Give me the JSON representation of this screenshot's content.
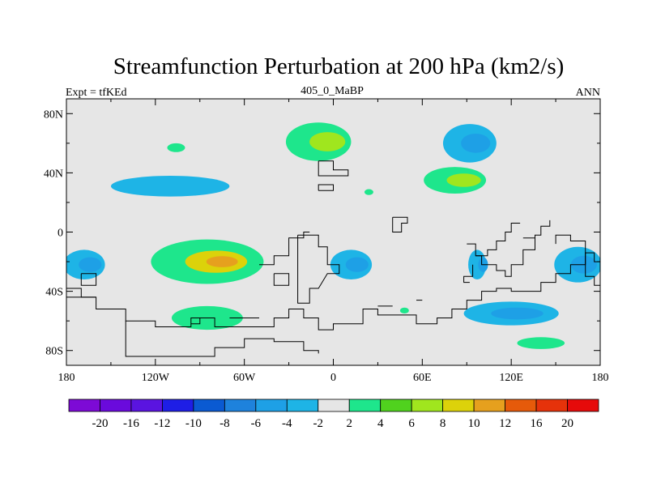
{
  "chart_data": {
    "type": "heatmap",
    "title": "Streamfunction Perturbation at 200 hPa (km2/s)",
    "left_label": "Expt = tfKEd",
    "center_label": "405_0_MaBP",
    "right_label": "ANN",
    "x_ticks": [
      {
        "value": -180,
        "label": "180"
      },
      {
        "value": -120,
        "label": "120W"
      },
      {
        "value": -60,
        "label": "60W"
      },
      {
        "value": 0,
        "label": "0"
      },
      {
        "value": 60,
        "label": "60E"
      },
      {
        "value": 120,
        "label": "120E"
      },
      {
        "value": 180,
        "label": "180"
      }
    ],
    "y_ticks": [
      {
        "value": 80,
        "label": "80N"
      },
      {
        "value": 40,
        "label": "40N"
      },
      {
        "value": 0,
        "label": "0"
      },
      {
        "value": -40,
        "label": "40S"
      },
      {
        "value": -80,
        "label": "80S"
      }
    ],
    "xlim": [
      -180,
      180
    ],
    "ylim": [
      -90,
      90
    ],
    "colorbar_colors": [
      "#7d0ad6",
      "#6a0adc",
      "#5a14e0",
      "#1e1ee6",
      "#0a5ad2",
      "#1e82dc",
      "#1ea0e6",
      "#1eb4e6",
      "#e6e6e6",
      "#1ee68c",
      "#50d21e",
      "#a0e61e",
      "#dcd20a",
      "#e6a01e",
      "#e65a0a",
      "#e6320a",
      "#e60a0a"
    ],
    "colorbar_labels": [
      "-20",
      "-16",
      "-12",
      "-10",
      "-8",
      "-6",
      "-4",
      "-2",
      "2",
      "4",
      "6",
      "8",
      "10",
      "12",
      "16",
      "20"
    ],
    "background_color": "#e6e6e6",
    "features": [
      {
        "name": "ne-pacific-low",
        "sign": "negative",
        "lon": 92,
        "lat": 60,
        "rx": 18,
        "ry": 13,
        "inner": -6
      },
      {
        "name": "north-asia-high",
        "sign": "positive",
        "lon": -10,
        "lat": 61,
        "rx": 22,
        "ry": 13,
        "inner": 6
      },
      {
        "name": "greenland-high-small",
        "sign": "positive",
        "lon": -106,
        "lat": 57,
        "rx": 6,
        "ry": 3,
        "inner": null
      },
      {
        "name": "north-atlantic-low",
        "sign": "negative",
        "lon": -110,
        "lat": 31,
        "rx": 40,
        "ry": 7,
        "inner": null
      },
      {
        "name": "north-pacific-high",
        "sign": "positive",
        "lon": 82,
        "lat": 35,
        "rx": 21,
        "ry": 9,
        "inner": 6
      },
      {
        "name": "south-atlantic-high",
        "sign": "positive",
        "lon": -85,
        "lat": -20,
        "rx": 38,
        "ry": 15,
        "inner": 8
      },
      {
        "name": "africa-low",
        "sign": "negative",
        "lon": 12,
        "lat": -22,
        "rx": 14,
        "ry": 10,
        "inner": -6
      },
      {
        "name": "indian-ocean-low",
        "sign": "negative",
        "lon": 97,
        "lat": -22,
        "rx": 6,
        "ry": 10,
        "inner": -6
      },
      {
        "name": "pacific-low",
        "sign": "negative",
        "lon": 165,
        "lat": -22,
        "rx": 16,
        "ry": 12,
        "inner": -6
      },
      {
        "name": "atlantic-low-west",
        "sign": "negative",
        "lon": -168,
        "lat": -22,
        "rx": 14,
        "ry": 10,
        "inner": -6
      },
      {
        "name": "south-pacific-low",
        "sign": "negative",
        "lon": 120,
        "lat": -55,
        "rx": 32,
        "ry": 8,
        "inner": -6
      },
      {
        "name": "southern-high",
        "sign": "positive",
        "lon": -85,
        "lat": -58,
        "rx": 24,
        "ry": 8,
        "inner": null
      },
      {
        "name": "antarctic-high",
        "sign": "positive",
        "lon": 140,
        "lat": -75,
        "rx": 16,
        "ry": 4,
        "inner": null
      },
      {
        "name": "central-high-small",
        "sign": "positive",
        "lon": 24,
        "lat": 27,
        "rx": 3,
        "ry": 2,
        "inner": null
      },
      {
        "name": "equatorial-high-small",
        "sign": "positive",
        "lon": 48,
        "lat": -53,
        "rx": 3,
        "ry": 2,
        "inner": null
      }
    ],
    "coastlines": [
      [
        [
          -10,
          48
        ],
        [
          0,
          48
        ],
        [
          0,
          42
        ],
        [
          10,
          42
        ],
        [
          10,
          38
        ],
        [
          -10,
          38
        ],
        [
          -10,
          48
        ]
      ],
      [
        [
          -10,
          28
        ],
        [
          0,
          28
        ],
        [
          0,
          32
        ],
        [
          -10,
          32
        ],
        [
          -10,
          28
        ]
      ],
      [
        [
          40,
          10
        ],
        [
          50,
          10
        ],
        [
          50,
          6
        ],
        [
          46,
          6
        ],
        [
          46,
          0
        ],
        [
          40,
          0
        ],
        [
          40,
          10
        ]
      ],
      [
        [
          -24,
          -2
        ],
        [
          -10,
          -2
        ],
        [
          -10,
          -10
        ],
        [
          -4,
          -10
        ],
        [
          -4,
          -22
        ],
        [
          4,
          -22
        ],
        [
          4,
          -28
        ],
        [
          -4,
          -28
        ],
        [
          -10,
          -38
        ],
        [
          -16,
          -38
        ],
        [
          -16,
          -48
        ],
        [
          -24,
          -48
        ],
        [
          -24,
          -2
        ]
      ],
      [
        [
          -40,
          -28
        ],
        [
          -30,
          -28
        ],
        [
          -30,
          -36
        ],
        [
          -40,
          -36
        ],
        [
          -40,
          -28
        ]
      ],
      [
        [
          -170,
          -28
        ],
        [
          -160,
          -28
        ],
        [
          -160,
          -36
        ],
        [
          -170,
          -36
        ],
        [
          -170,
          -28
        ]
      ],
      [
        [
          -180,
          -38
        ],
        [
          -170,
          -38
        ],
        [
          -170,
          -44
        ],
        [
          -160,
          -44
        ],
        [
          -160,
          -52
        ],
        [
          -140,
          -52
        ],
        [
          -140,
          -60
        ],
        [
          -130,
          -60
        ],
        [
          -120,
          -60
        ],
        [
          -120,
          -64
        ],
        [
          -96,
          -64
        ],
        [
          -96,
          -58
        ],
        [
          -80,
          -58
        ],
        [
          -80,
          -64
        ],
        [
          -60,
          -64
        ],
        [
          -40,
          -64
        ],
        [
          -40,
          -58
        ],
        [
          -30,
          -58
        ],
        [
          -30,
          -52
        ],
        [
          -20,
          -52
        ],
        [
          -20,
          -58
        ],
        [
          -10,
          -58
        ],
        [
          -10,
          -66
        ],
        [
          0,
          -66
        ],
        [
          0,
          -62
        ],
        [
          20,
          -62
        ],
        [
          20,
          -52
        ],
        [
          30,
          -52
        ],
        [
          30,
          -56
        ],
        [
          56,
          -56
        ],
        [
          56,
          -62
        ],
        [
          70,
          -62
        ],
        [
          70,
          -58
        ],
        [
          80,
          -58
        ],
        [
          80,
          -52
        ],
        [
          90,
          -52
        ],
        [
          90,
          -46
        ],
        [
          100,
          -46
        ],
        [
          100,
          -40
        ],
        [
          110,
          -40
        ],
        [
          110,
          -38
        ],
        [
          120,
          -38
        ],
        [
          120,
          -40
        ],
        [
          140,
          -40
        ],
        [
          140,
          -34
        ],
        [
          150,
          -34
        ],
        [
          150,
          -28
        ],
        [
          160,
          -28
        ],
        [
          160,
          -22
        ],
        [
          170,
          -22
        ],
        [
          170,
          -14
        ],
        [
          176,
          -14
        ],
        [
          176,
          -20
        ],
        [
          180,
          -20
        ]
      ],
      [
        [
          -180,
          -44
        ],
        [
          -160,
          -44
        ]
      ],
      [
        [
          -140,
          -60
        ],
        [
          -140,
          -84
        ],
        [
          -80,
          -84
        ],
        [
          -80,
          -78
        ],
        [
          -60,
          -78
        ],
        [
          -60,
          -72
        ],
        [
          -40,
          -72
        ],
        [
          -40,
          -74
        ],
        [
          -20,
          -74
        ],
        [
          -20,
          -80
        ],
        [
          -10,
          -80
        ],
        [
          -10,
          -82
        ]
      ],
      [
        [
          -90,
          -58
        ],
        [
          -90,
          -62
        ],
        [
          -96,
          -62
        ]
      ],
      [
        [
          -70,
          -58
        ],
        [
          -50,
          -58
        ]
      ],
      [
        [
          170,
          -22
        ],
        [
          170,
          -30
        ],
        [
          176,
          -30
        ],
        [
          176,
          -36
        ],
        [
          180,
          -36
        ]
      ],
      [
        [
          150,
          -8
        ],
        [
          150,
          -2
        ],
        [
          160,
          -2
        ],
        [
          160,
          -6
        ],
        [
          170,
          -6
        ],
        [
          170,
          -22
        ]
      ],
      [
        [
          90,
          -8
        ],
        [
          96,
          -8
        ],
        [
          96,
          -16
        ],
        [
          100,
          -16
        ],
        [
          100,
          -22
        ],
        [
          110,
          -22
        ],
        [
          110,
          -26
        ],
        [
          116,
          -26
        ],
        [
          116,
          -30
        ],
        [
          120,
          -30
        ],
        [
          120,
          -22
        ],
        [
          128,
          -22
        ],
        [
          128,
          -12
        ],
        [
          136,
          -12
        ],
        [
          136,
          -2
        ],
        [
          140,
          -2
        ],
        [
          140,
          4
        ],
        [
          146,
          4
        ],
        [
          146,
          8
        ]
      ],
      [
        [
          126,
          6
        ],
        [
          120,
          6
        ],
        [
          120,
          0
        ],
        [
          116,
          0
        ],
        [
          116,
          -6
        ],
        [
          110,
          -6
        ],
        [
          110,
          -12
        ],
        [
          104,
          -12
        ],
        [
          104,
          -16
        ],
        [
          96,
          -16
        ]
      ],
      [
        [
          94,
          -22
        ],
        [
          94,
          -30
        ],
        [
          88,
          -30
        ],
        [
          88,
          -34
        ],
        [
          92,
          -34
        ]
      ],
      [
        [
          128,
          -4
        ],
        [
          136,
          -4
        ]
      ],
      [
        [
          56,
          -46
        ],
        [
          60,
          -46
        ]
      ],
      [
        [
          30,
          -50
        ],
        [
          40,
          -50
        ]
      ],
      [
        [
          -50,
          -22
        ],
        [
          -40,
          -22
        ],
        [
          -40,
          -16
        ],
        [
          -30,
          -16
        ],
        [
          -30,
          -4
        ],
        [
          -20,
          -4
        ],
        [
          -20,
          0
        ],
        [
          -16,
          0
        ]
      ]
    ]
  }
}
